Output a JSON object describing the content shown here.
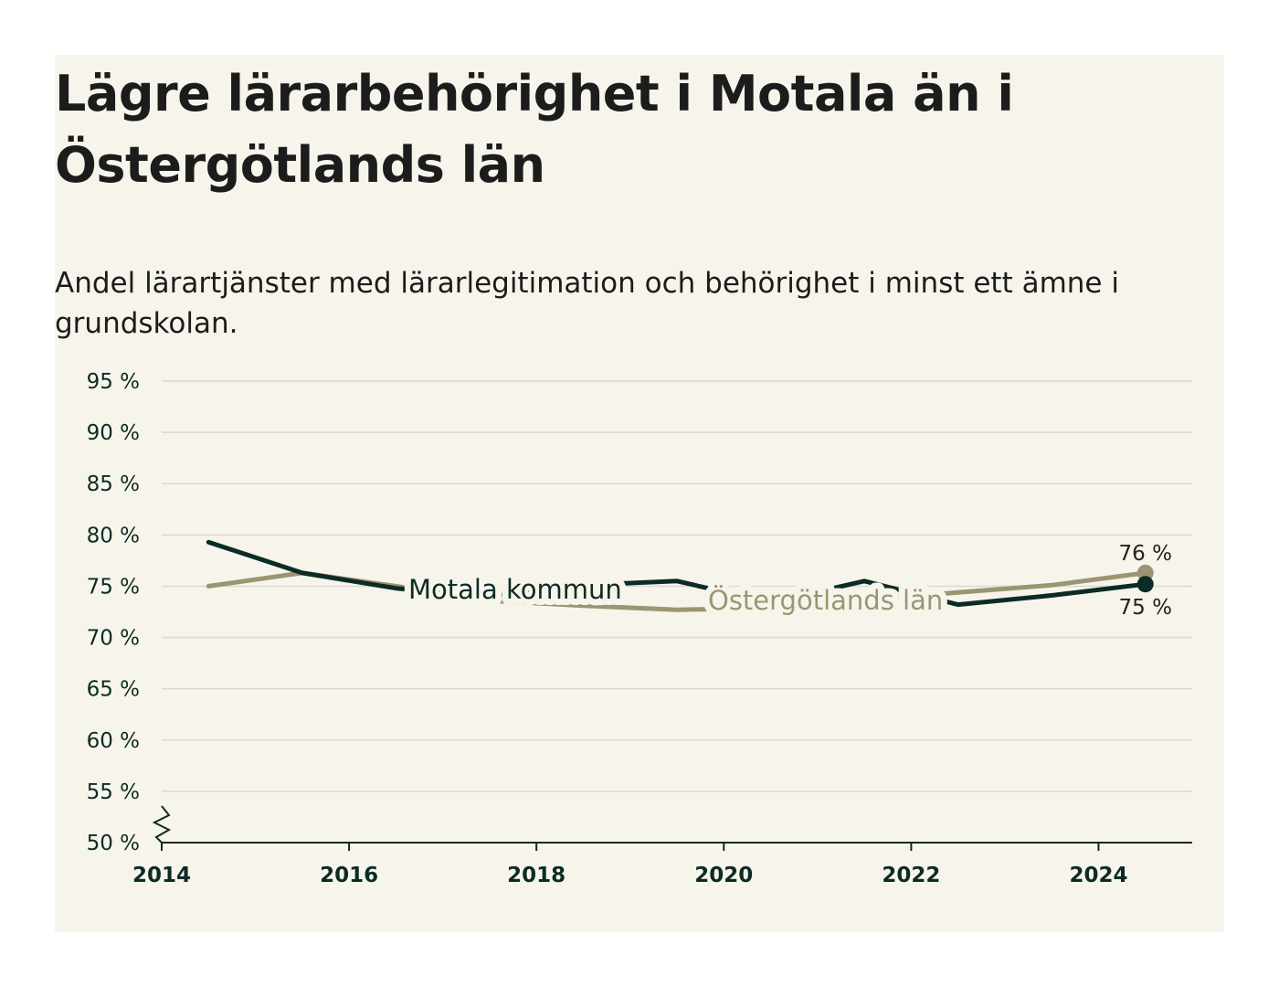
{
  "title": "Lägre lärarbehörighet i Motala än i Östergötlands län",
  "subtitle": "Andel lärartjänster med lärarlegitimation och behörighet i minst ett ämne i grundskolan.",
  "colors": {
    "background": "#f7f5eb",
    "motala": "#0c2b26",
    "lan": "#9b9574",
    "grid": "#d9d8d2",
    "axis": "#0c2b26"
  },
  "chart_data": {
    "type": "line",
    "title": "Lägre lärarbehörighet i Motala än i Östergötlands län",
    "subtitle": "Andel lärartjänster med lärarlegitimation och behörighet i minst ett ämne i grundskolan.",
    "xlim": [
      2014,
      2025
    ],
    "ylim": [
      50,
      95
    ],
    "x_ticks": [
      2014,
      2016,
      2018,
      2020,
      2022,
      2024
    ],
    "x_tick_labels": [
      "2014",
      "2016",
      "2018",
      "2020",
      "2022",
      "2024"
    ],
    "y_ticks": [
      50,
      55,
      60,
      65,
      70,
      75,
      80,
      85,
      90,
      95
    ],
    "y_tick_labels": [
      "50 %",
      "55 %",
      "60 %",
      "65 %",
      "70 %",
      "75 %",
      "80 %",
      "85 %",
      "90 %",
      "95 %"
    ],
    "grid": true,
    "axis_break": true,
    "series": [
      {
        "name": "Motala kommun",
        "color": "#0c2b26",
        "x": [
          2014.5,
          2015.5,
          2016.5,
          2017.5,
          2018.5,
          2019.5,
          2020.5,
          2021.5,
          2022.5,
          2023.5,
          2024.5
        ],
        "y": [
          79.3,
          76.3,
          74.8,
          74.0,
          75.1,
          75.5,
          73.4,
          75.5,
          73.2,
          74.1,
          75.2
        ],
        "end_label": "75 %"
      },
      {
        "name": "Östergötlands län",
        "color": "#9b9574",
        "x": [
          2014.5,
          2015.5,
          2016.5,
          2017.5,
          2018.5,
          2019.5,
          2020.5,
          2021.5,
          2022.5,
          2023.5,
          2024.5
        ],
        "y": [
          75.0,
          76.3,
          75.0,
          73.6,
          73.1,
          72.7,
          72.9,
          73.6,
          74.4,
          75.1,
          76.3
        ],
        "end_label": "76 %"
      }
    ]
  }
}
